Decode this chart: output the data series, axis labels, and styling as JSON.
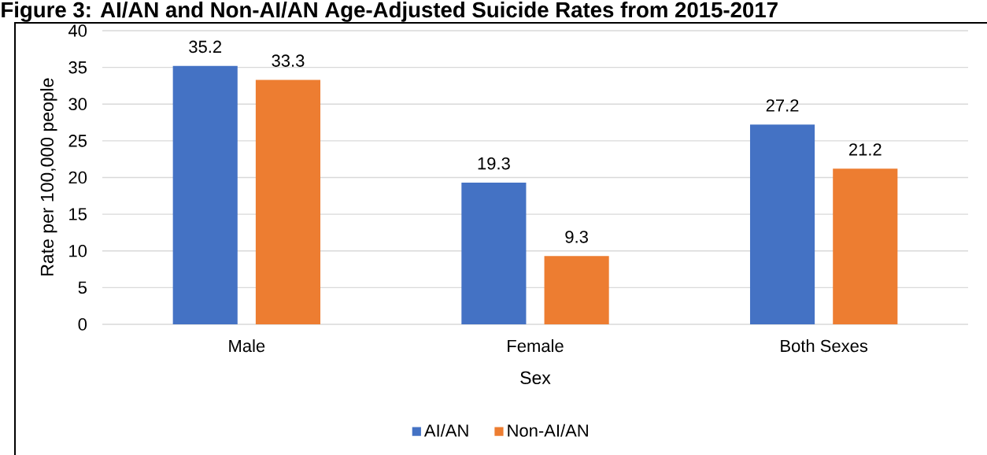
{
  "chart_data": {
    "type": "bar",
    "title": "Figure 3: AI/AN and Non-AI/AN Age-Adjusted Suicide Rates from 2015-2017",
    "xlabel": "Sex",
    "ylabel": "Rate per 100,000 people",
    "categories": [
      "Male",
      "Female",
      "Both Sexes"
    ],
    "series": [
      {
        "name": "AI/AN",
        "color": "#4472c4",
        "values": [
          35.2,
          19.3,
          27.2
        ]
      },
      {
        "name": "Non-AI/AN",
        "color": "#ed7d31",
        "values": [
          33.3,
          9.3,
          21.2
        ]
      }
    ],
    "ylim": [
      0,
      40
    ],
    "yticks": [
      0,
      5,
      10,
      15,
      20,
      25,
      30,
      35,
      40
    ],
    "grid": "y",
    "legend": "bottom",
    "data_labels": true
  }
}
